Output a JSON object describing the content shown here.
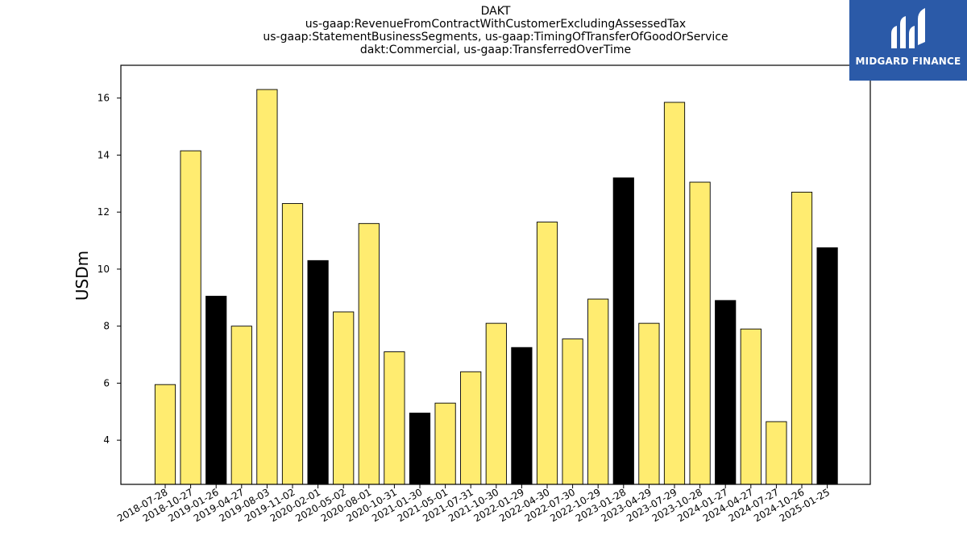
{
  "brand": {
    "name": "MIDGARD FINANCE",
    "bg_color": "#2b5aa8"
  },
  "chart_data": {
    "type": "bar",
    "title_lines": [
      "DAKT",
      "us-gaap:RevenueFromContractWithCustomerExcludingAssessedTax",
      "us-gaap:StatementBusinessSegments, us-gaap:TimingOfTransferOfGoodOrService",
      "dakt:Commercial, us-gaap:TransferredOverTime"
    ],
    "xlabel": "",
    "ylabel": "USDm",
    "ylim": [
      2.45,
      17.15
    ],
    "yticks": [
      4,
      6,
      8,
      10,
      12,
      14,
      16
    ],
    "grid": false,
    "colors": {
      "default": "#ffec70",
      "highlight": "#000000"
    },
    "categories": [
      "2018-07-28",
      "2018-10-27",
      "2019-01-26",
      "2019-04-27",
      "2019-08-03",
      "2019-11-02",
      "2020-02-01",
      "2020-05-02",
      "2020-08-01",
      "2020-10-31",
      "2021-01-30",
      "2021-05-01",
      "2021-07-31",
      "2021-10-30",
      "2022-01-29",
      "2022-04-30",
      "2022-07-30",
      "2022-10-29",
      "2023-01-28",
      "2023-04-29",
      "2023-07-29",
      "2023-10-28",
      "2024-01-27",
      "2024-04-27",
      "2024-07-27",
      "2024-10-26",
      "2025-01-25"
    ],
    "values": [
      5.95,
      14.15,
      9.05,
      8.0,
      16.3,
      12.3,
      10.3,
      8.5,
      11.6,
      7.1,
      4.95,
      5.3,
      6.4,
      8.1,
      7.25,
      11.65,
      7.55,
      8.95,
      13.2,
      8.1,
      15.85,
      13.05,
      8.9,
      7.9,
      4.65,
      12.7,
      10.75
    ],
    "highlight": [
      false,
      false,
      true,
      false,
      false,
      false,
      true,
      false,
      false,
      false,
      true,
      false,
      false,
      false,
      true,
      false,
      false,
      false,
      true,
      false,
      false,
      false,
      true,
      false,
      false,
      false,
      true
    ]
  }
}
